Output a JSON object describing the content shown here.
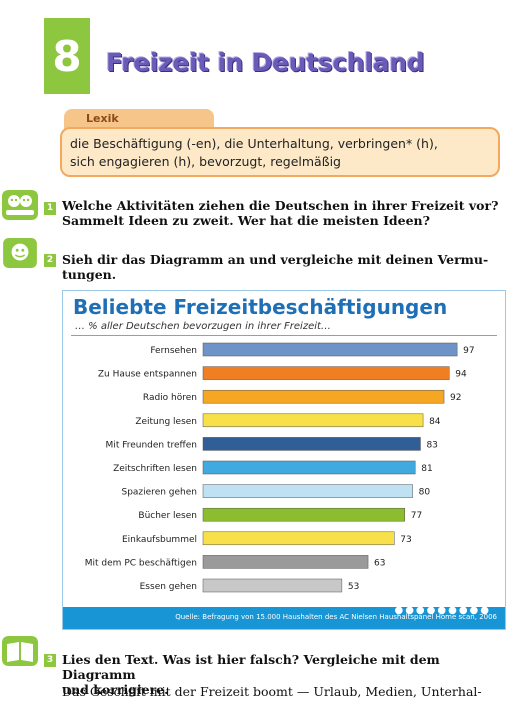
{
  "chapter": {
    "number": "8",
    "title": "Freizeit in Deutschland"
  },
  "lexik": {
    "label": "Lexik",
    "line1": "die Beschäftigung (-en), die Unterhaltung, verbringen* (h),",
    "line2": "sich engagieren (h), bevorzugt,   regelmäßig"
  },
  "tasks": [
    {
      "number": "1",
      "line1": "Welche Aktivitäten ziehen die Deutschen in ihrer Freizeit vor?",
      "line2": "Sammelt Ideen zu zweit. Wer hat die meisten Ideen?"
    },
    {
      "number": "2",
      "line1": "Sieh dir das Diagramm an und vergleiche mit deinen Vermu-",
      "line2": "tungen."
    },
    {
      "number": "3",
      "line1": "Lies den Text. Was ist hier falsch? Vergleiche mit dem Diagramm",
      "line2": "und korrigiere."
    }
  ],
  "paragraph": "Das Geschäft mit der Freizeit boomt — Urlaub, Medien, Unterhal-",
  "chart_data": {
    "type": "bar",
    "orientation": "horizontal",
    "title": "Beliebte Freizeitbeschäftigungen",
    "subtitle": "… % aller Deutschen bevorzugen in ihrer Freizeit…",
    "categories": [
      "Fernsehen",
      "Zu Hause entspannen",
      "Radio hören",
      "Zeitung lesen",
      "Mit Freunden treffen",
      "Zeitschriften lesen",
      "Spazieren gehen",
      "Bücher lesen",
      "Einkaufsbummel",
      "Mit dem PC beschäftigen",
      "Essen gehen"
    ],
    "values": [
      97,
      94,
      92,
      84,
      83,
      81,
      80,
      77,
      73,
      63,
      53
    ],
    "colors": [
      "#6e93c8",
      "#f07f22",
      "#f5a623",
      "#f7e04a",
      "#2f5f96",
      "#3fa9e0",
      "#bfe1f4",
      "#8cbd2e",
      "#f7e04a",
      "#9a9a9a",
      "#c8c8c8"
    ],
    "xlim": [
      0,
      100
    ],
    "source": "Quelle: Befragung von 15.000 Haushalten des AC Nielsen Haushaltspanel Home scan, 2006"
  }
}
